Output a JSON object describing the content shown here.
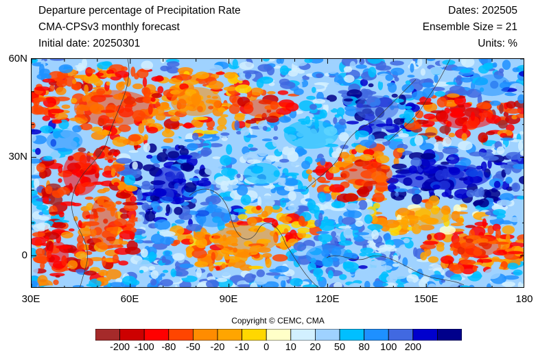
{
  "header": {
    "title": "Departure percentage of Precipitation Rate",
    "model": "CMA-CPSv3 monthly forecast",
    "initial_date": "Initial date: 20250301",
    "dates": "Dates: 202505",
    "ensemble": "Ensemble Size = 21",
    "units": "Units: %"
  },
  "map": {
    "lat_range": [
      -10,
      60
    ],
    "lon_range": [
      30,
      180
    ],
    "lat_ticks": [
      {
        "value": 60,
        "label": "60N"
      },
      {
        "value": 30,
        "label": "30N"
      },
      {
        "value": 0,
        "label": "0"
      }
    ],
    "lon_ticks": [
      {
        "value": 30,
        "label": "30E"
      },
      {
        "value": 60,
        "label": "60E"
      },
      {
        "value": 90,
        "label": "90E"
      },
      {
        "value": 120,
        "label": "120E"
      },
      {
        "value": 150,
        "label": "150E"
      },
      {
        "value": 180,
        "label": "180"
      }
    ]
  },
  "copyright": "Copyright © CEMC, CMA",
  "colorbar": {
    "colors": [
      "#a52a2a",
      "#cd0000",
      "#ff0000",
      "#ff4500",
      "#ff8c00",
      "#ffa500",
      "#ffd700",
      "#ffffc8",
      "#d2f0ff",
      "#9fd2ff",
      "#00bfff",
      "#1e90ff",
      "#4169e1",
      "#0000cd",
      "#00008b"
    ],
    "labels": [
      "-200",
      "-100",
      "-80",
      "-50",
      "-20",
      "-10",
      "0",
      "10",
      "20",
      "50",
      "80",
      "100",
      "200"
    ]
  },
  "field_regions": [
    {
      "lon": 55,
      "lat": 45,
      "rx": 22,
      "ry": 10,
      "level": 3
    },
    {
      "lon": 80,
      "lat": 47,
      "rx": 14,
      "ry": 8,
      "level": 4
    },
    {
      "lon": 100,
      "lat": 45,
      "rx": 10,
      "ry": 5,
      "level": 3
    },
    {
      "lon": 45,
      "lat": 25,
      "rx": 10,
      "ry": 12,
      "level": 2
    },
    {
      "lon": 52,
      "lat": 10,
      "rx": 8,
      "ry": 15,
      "level": 3
    },
    {
      "lon": 38,
      "lat": 0,
      "rx": 6,
      "ry": 8,
      "level": 2
    },
    {
      "lon": 95,
      "lat": 5,
      "rx": 18,
      "ry": 8,
      "level": 4
    },
    {
      "lon": 132,
      "lat": 25,
      "rx": 14,
      "ry": 7,
      "level": 3
    },
    {
      "lon": 162,
      "lat": 42,
      "rx": 16,
      "ry": 6,
      "level": 2
    },
    {
      "lon": 165,
      "lat": 3,
      "rx": 14,
      "ry": 6,
      "level": 3
    },
    {
      "lon": 150,
      "lat": 12,
      "rx": 14,
      "ry": 5,
      "level": 5
    },
    {
      "lon": 72,
      "lat": 22,
      "rx": 9,
      "ry": 10,
      "level": 13
    },
    {
      "lon": 155,
      "lat": 24,
      "rx": 26,
      "ry": 7,
      "level": 13
    },
    {
      "lon": 135,
      "lat": 45,
      "rx": 12,
      "ry": 7,
      "level": 12
    },
    {
      "lon": 85,
      "lat": 12,
      "rx": 10,
      "ry": 6,
      "level": 11
    },
    {
      "lon": 40,
      "lat": 35,
      "rx": 10,
      "ry": 6,
      "level": 11
    },
    {
      "lon": 115,
      "lat": 37,
      "rx": 15,
      "ry": 8,
      "level": 10
    },
    {
      "lon": 120,
      "lat": 0,
      "rx": 12,
      "ry": 6,
      "level": 11
    },
    {
      "lon": 170,
      "lat": 52,
      "rx": 10,
      "ry": 6,
      "level": 11
    },
    {
      "lon": 100,
      "lat": 25,
      "rx": 10,
      "ry": 6,
      "level": 10
    }
  ]
}
